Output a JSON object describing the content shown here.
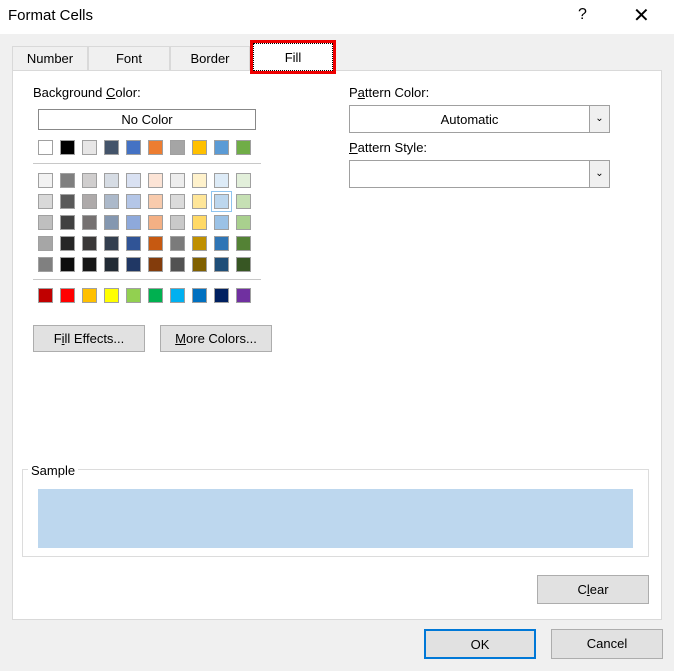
{
  "dialog": {
    "title": "Format Cells",
    "help_icon": "?",
    "close_icon": "✕"
  },
  "tabs": [
    {
      "label": "Number",
      "active": false
    },
    {
      "label": "Font",
      "active": false
    },
    {
      "label": "Border",
      "active": false
    },
    {
      "label": "Fill",
      "active": true
    }
  ],
  "background": {
    "label": "Background Color:",
    "no_color": "No Color",
    "theme_row": [
      "#FFFFFF",
      "#000000",
      "#E7E6E6",
      "#44546A",
      "#4472C4",
      "#ED7D31",
      "#A5A5A5",
      "#FFC000",
      "#5B9BD5",
      "#70AD47"
    ],
    "shade_rows": [
      [
        "#F2F2F2",
        "#7F7F7F",
        "#D0CECE",
        "#D6DCE4",
        "#D9E1F2",
        "#FCE4D6",
        "#EDEDED",
        "#FFF2CC",
        "#DDEBF7",
        "#E2EFDA"
      ],
      [
        "#D9D9D9",
        "#595959",
        "#AEAAAA",
        "#ACB9CA",
        "#B4C6E7",
        "#F8CBAD",
        "#DBDBDB",
        "#FFE699",
        "#BDD7EE",
        "#C6E0B4"
      ],
      [
        "#BFBFBF",
        "#404040",
        "#757171",
        "#8497B0",
        "#8EA9DB",
        "#F4B084",
        "#C9C9C9",
        "#FFD966",
        "#9BC2E6",
        "#A9D08E"
      ],
      [
        "#A6A6A6",
        "#262626",
        "#3A3838",
        "#333F4F",
        "#305496",
        "#C65911",
        "#7B7B7B",
        "#BF8F00",
        "#2F75B5",
        "#548235"
      ],
      [
        "#808080",
        "#0D0D0D",
        "#161616",
        "#222B35",
        "#203764",
        "#833C0C",
        "#525252",
        "#806000",
        "#1F4E78",
        "#375623"
      ]
    ],
    "standard_row": [
      "#C00000",
      "#FF0000",
      "#FFC000",
      "#FFFF00",
      "#92D050",
      "#00B050",
      "#00B0F0",
      "#0070C0",
      "#002060",
      "#7030A0"
    ],
    "selected": "#BDD7EE",
    "fill_effects": "Fill Effects...",
    "more_colors": "More Colors..."
  },
  "pattern": {
    "color_label": "Pattern Color:",
    "color_value": "Automatic",
    "style_label": "Pattern Style:",
    "style_value": ""
  },
  "sample": {
    "label": "Sample",
    "color": "#BDD7EE"
  },
  "buttons": {
    "clear": "Clear",
    "ok": "OK",
    "cancel": "Cancel"
  }
}
